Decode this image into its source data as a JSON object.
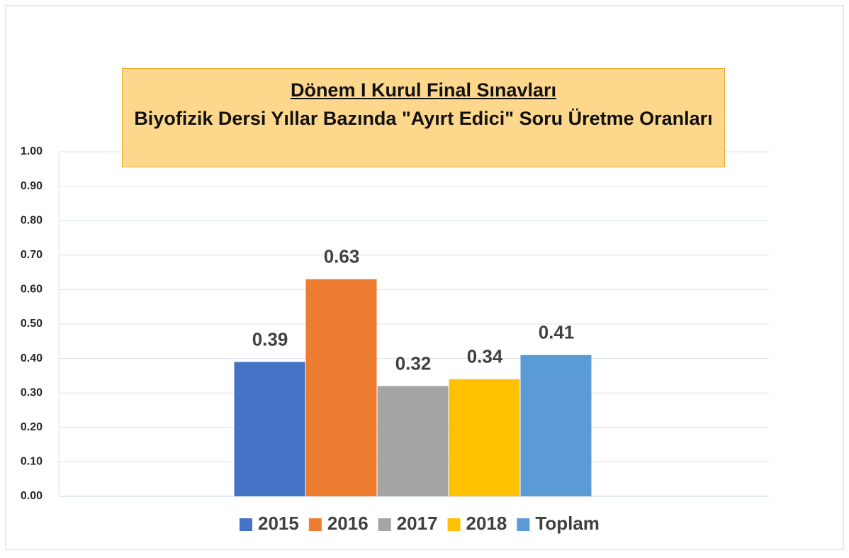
{
  "chart_data": {
    "type": "bar",
    "title": "Dönem I Kurul Final Sınavları",
    "subtitle": "Biyofizik Dersi Yıllar Bazında \"Ayırt Edici\" Soru Üretme Oranları",
    "categories": [
      null
    ],
    "series": [
      {
        "name": "2015",
        "color": "#4472c4",
        "values": [
          0.39
        ]
      },
      {
        "name": "2016",
        "color": "#ed7d31",
        "values": [
          0.63
        ]
      },
      {
        "name": "2017",
        "color": "#a5a5a5",
        "values": [
          0.32
        ]
      },
      {
        "name": "2018",
        "color": "#ffc000",
        "values": [
          0.34
        ]
      },
      {
        "name": "Toplam",
        "color": "#5b9bd5",
        "values": [
          0.41
        ]
      }
    ],
    "ylim": [
      0,
      1
    ],
    "yticks": [
      {
        "value": 0,
        "label": "0.00"
      },
      {
        "value": 0.1,
        "label": "0.10"
      },
      {
        "value": 0.2,
        "label": "0.20"
      },
      {
        "value": 0.3,
        "label": "0.30"
      },
      {
        "value": 0.4,
        "label": "0.40"
      },
      {
        "value": 0.5,
        "label": "0.50"
      },
      {
        "value": 0.6,
        "label": "0.60"
      },
      {
        "value": 0.7,
        "label": "0.70"
      },
      {
        "value": 0.8,
        "label": "0.80"
      },
      {
        "value": 0.9,
        "label": "0.90"
      },
      {
        "value": 1,
        "label": "1.00"
      }
    ],
    "grid": true,
    "legend": "bottom"
  }
}
